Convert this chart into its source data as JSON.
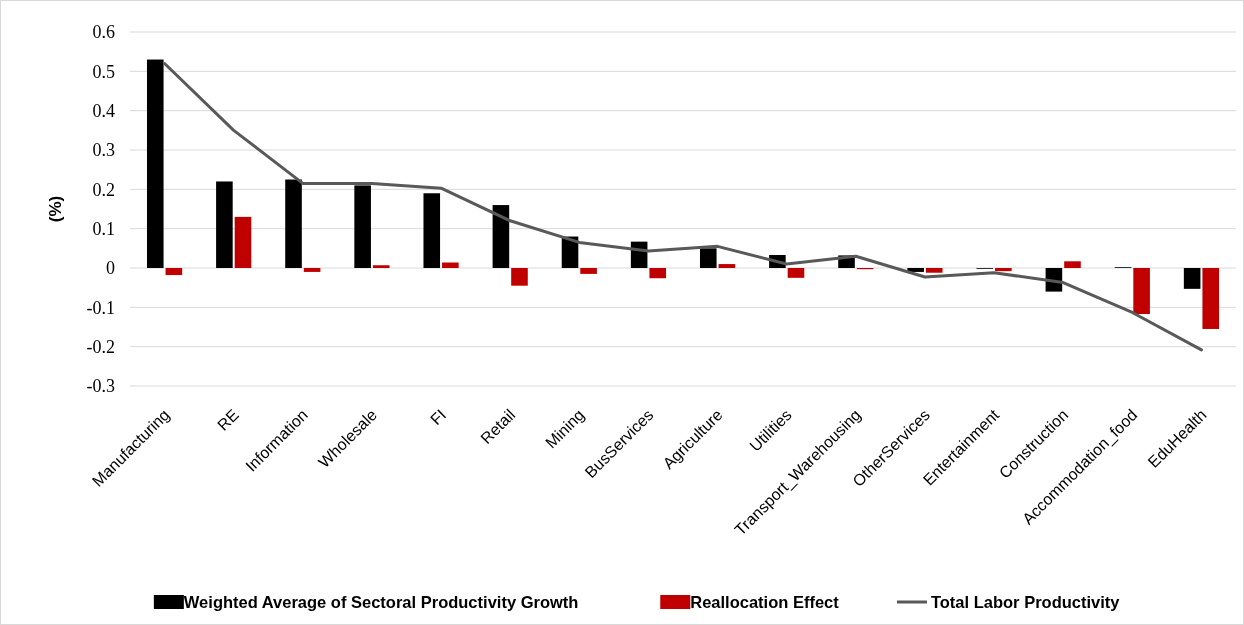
{
  "chart_data": {
    "type": "bar",
    "ylabel": "(%)",
    "categories": [
      "Manufacturing",
      "RE",
      "Information",
      "Wholesale",
      "FI",
      "Retail",
      "Mining",
      "BusServices",
      "Agriculture",
      "Utilities",
      "Transport_Warehousing",
      "OtherServices",
      "Entertainment",
      "Construction",
      "Accommodation_food",
      "EduHealth"
    ],
    "series": [
      {
        "name": "Weighted Average of Sectoral Productivity Growth",
        "color": "#000000",
        "values": [
          0.53,
          0.22,
          0.225,
          0.21,
          0.19,
          0.16,
          0.08,
          0.067,
          0.05,
          0.033,
          0.032,
          -0.01,
          -0.002,
          -0.06,
          0.002,
          -0.053
        ]
      },
      {
        "name": "Reallocation Effect",
        "color": "#c00000",
        "values": [
          -0.018,
          0.13,
          -0.01,
          0.007,
          0.014,
          -0.045,
          -0.015,
          -0.026,
          0.01,
          -0.025,
          -0.003,
          -0.012,
          -0.008,
          0.017,
          -0.117,
          -0.155
        ]
      },
      {
        "name": "Total Labor Productivity",
        "type": "line",
        "color": "#595959",
        "values": [
          0.52,
          0.35,
          0.215,
          0.215,
          0.203,
          0.12,
          0.065,
          0.043,
          0.055,
          0.01,
          0.03,
          -0.023,
          -0.012,
          -0.037,
          -0.113,
          -0.208
        ]
      }
    ],
    "ylim": [
      -0.3,
      0.6
    ],
    "yticks": [
      {
        "value": -0.3,
        "label": "-0.3"
      },
      {
        "value": -0.2,
        "label": "-0.2"
      },
      {
        "value": -0.1,
        "label": "-0.1"
      },
      {
        "value": 0,
        "label": "0"
      },
      {
        "value": 0.1,
        "label": "0.1"
      },
      {
        "value": 0.2,
        "label": "0.2"
      },
      {
        "value": 0.3,
        "label": "0.3"
      },
      {
        "value": 0.4,
        "label": "0.4"
      },
      {
        "value": 0.5,
        "label": "0.5"
      },
      {
        "value": 0.6,
        "label": "0.6"
      }
    ],
    "grid": "y",
    "legend": "bottom"
  }
}
